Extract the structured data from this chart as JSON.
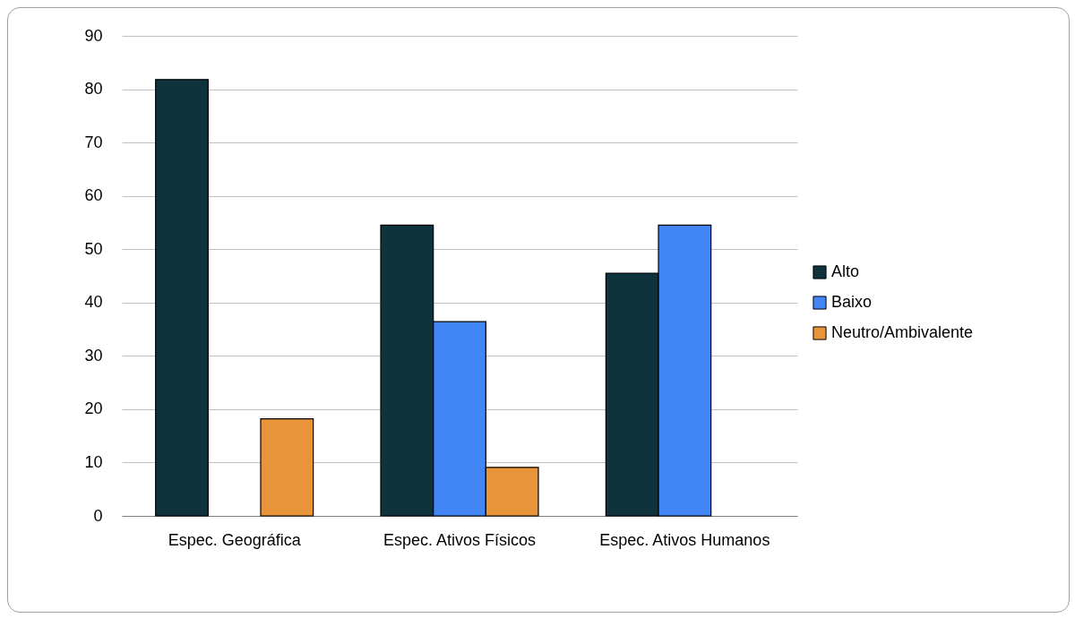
{
  "chart_data": {
    "type": "bar",
    "categories": [
      "Espec. Geográfica",
      "Espec. Ativos Físicos",
      "Espec. Ativos Humanos"
    ],
    "series": [
      {
        "name": "Alto",
        "color": "#0e333c",
        "values": [
          81.8,
          54.5,
          45.5
        ]
      },
      {
        "name": "Baixo",
        "color": "#4285f4",
        "values": [
          null,
          36.4,
          54.5
        ]
      },
      {
        "name": "Neutro/Ambivalente",
        "color": "#e8943a",
        "values": [
          18.2,
          9.1,
          null
        ]
      }
    ],
    "ylim": [
      0,
      90
    ],
    "yticks": [
      0,
      10,
      20,
      30,
      40,
      50,
      60,
      70,
      80,
      90
    ],
    "grid": "y",
    "legend": "right"
  }
}
